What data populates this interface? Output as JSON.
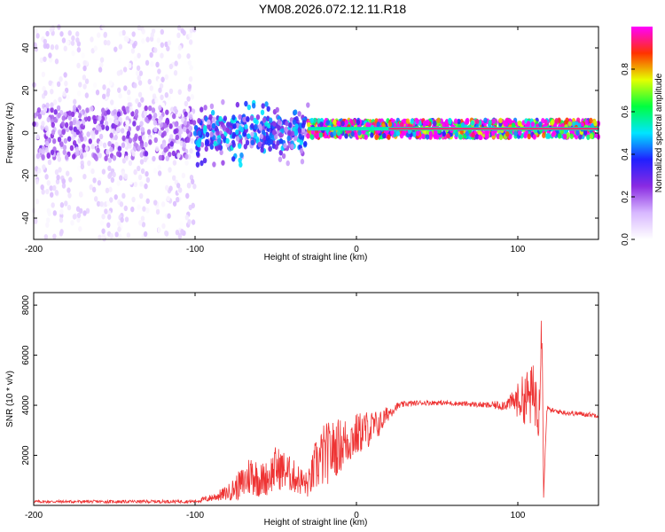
{
  "figure": {
    "title": "YM08.2026.072.12.11.R18"
  },
  "chart_data": [
    {
      "type": "heatmap",
      "name": "spectrogram",
      "xlabel": "Height of straight line (km)",
      "ylabel": "Frequency (Hz)",
      "xlim": [
        -200,
        150
      ],
      "ylim": [
        -50,
        50
      ],
      "xticks": [
        -200,
        -100,
        0,
        100
      ],
      "yticks": [
        -40,
        -20,
        0,
        20,
        40
      ],
      "colorbar": {
        "label": "Normalized spectral amplitude",
        "range": [
          0,
          1
        ],
        "ticks": [
          0,
          0.2,
          0.4,
          0.6,
          0.8
        ],
        "tick_labels": [
          "0.0",
          "0.2",
          "0.4",
          "0.6",
          "0.8"
        ],
        "colormap": [
          "#ffffff",
          "#d8b8ff",
          "#8a2be2",
          "#2020ff",
          "#00e5ff",
          "#00ff40",
          "#e5ff00",
          "#ff3300",
          "#ff00ff"
        ]
      },
      "regions": [
        {
          "x_range": [
            -200,
            -100
          ],
          "freq_spread": 45,
          "max_amplitude": 0.15,
          "note": "diffuse scattered noise"
        },
        {
          "x_range": [
            -100,
            -30
          ],
          "freq_spread": 15,
          "max_amplitude": 0.4,
          "note": "concentrated band near 0 Hz"
        },
        {
          "x_range": [
            -30,
            150
          ],
          "freq_spread": 4,
          "max_amplitude": 0.95,
          "note": "narrow strong band at ~2 Hz"
        }
      ]
    },
    {
      "type": "line",
      "name": "snr",
      "xlabel": "Height of straight line (km)",
      "ylabel": "SNR (10 * v/v)",
      "xlim": [
        -200,
        150
      ],
      "ylim": [
        0,
        8500
      ],
      "xticks": [
        -200,
        -100,
        0,
        100
      ],
      "yticks": [
        2000,
        4000,
        6000,
        8000
      ],
      "color": "#ee3333",
      "series": [
        {
          "name": "SNR",
          "x": [
            -200,
            -150,
            -100,
            -90,
            -80,
            -70,
            -65,
            -60,
            -55,
            -50,
            -45,
            -40,
            -35,
            -30,
            -25,
            -20,
            -15,
            -10,
            -5,
            0,
            5,
            10,
            15,
            20,
            25,
            30,
            40,
            50,
            60,
            70,
            80,
            90,
            95,
            100,
            105,
            110,
            113,
            115,
            116,
            118,
            120,
            130,
            140,
            150
          ],
          "y": [
            150,
            150,
            160,
            300,
            500,
            900,
            1300,
            1000,
            1100,
            1500,
            1400,
            1200,
            1000,
            800,
            1600,
            2000,
            2200,
            2400,
            2600,
            2800,
            3000,
            3100,
            3300,
            3700,
            3950,
            4050,
            4100,
            4100,
            4080,
            4050,
            4000,
            4000,
            4100,
            4200,
            4300,
            4400,
            4100,
            7500,
            400,
            3900,
            3800,
            3700,
            3650,
            3600
          ],
          "noise": [
            60,
            60,
            70,
            150,
            300,
            700,
            900,
            700,
            700,
            900,
            800,
            700,
            600,
            500,
            1100,
            1300,
            1200,
            1100,
            1000,
            900,
            800,
            700,
            500,
            300,
            150,
            120,
            100,
            100,
            100,
            100,
            120,
            200,
            300,
            700,
            1100,
            1300,
            1400,
            1200,
            100,
            150,
            100,
            100,
            100,
            100
          ]
        }
      ]
    }
  ]
}
